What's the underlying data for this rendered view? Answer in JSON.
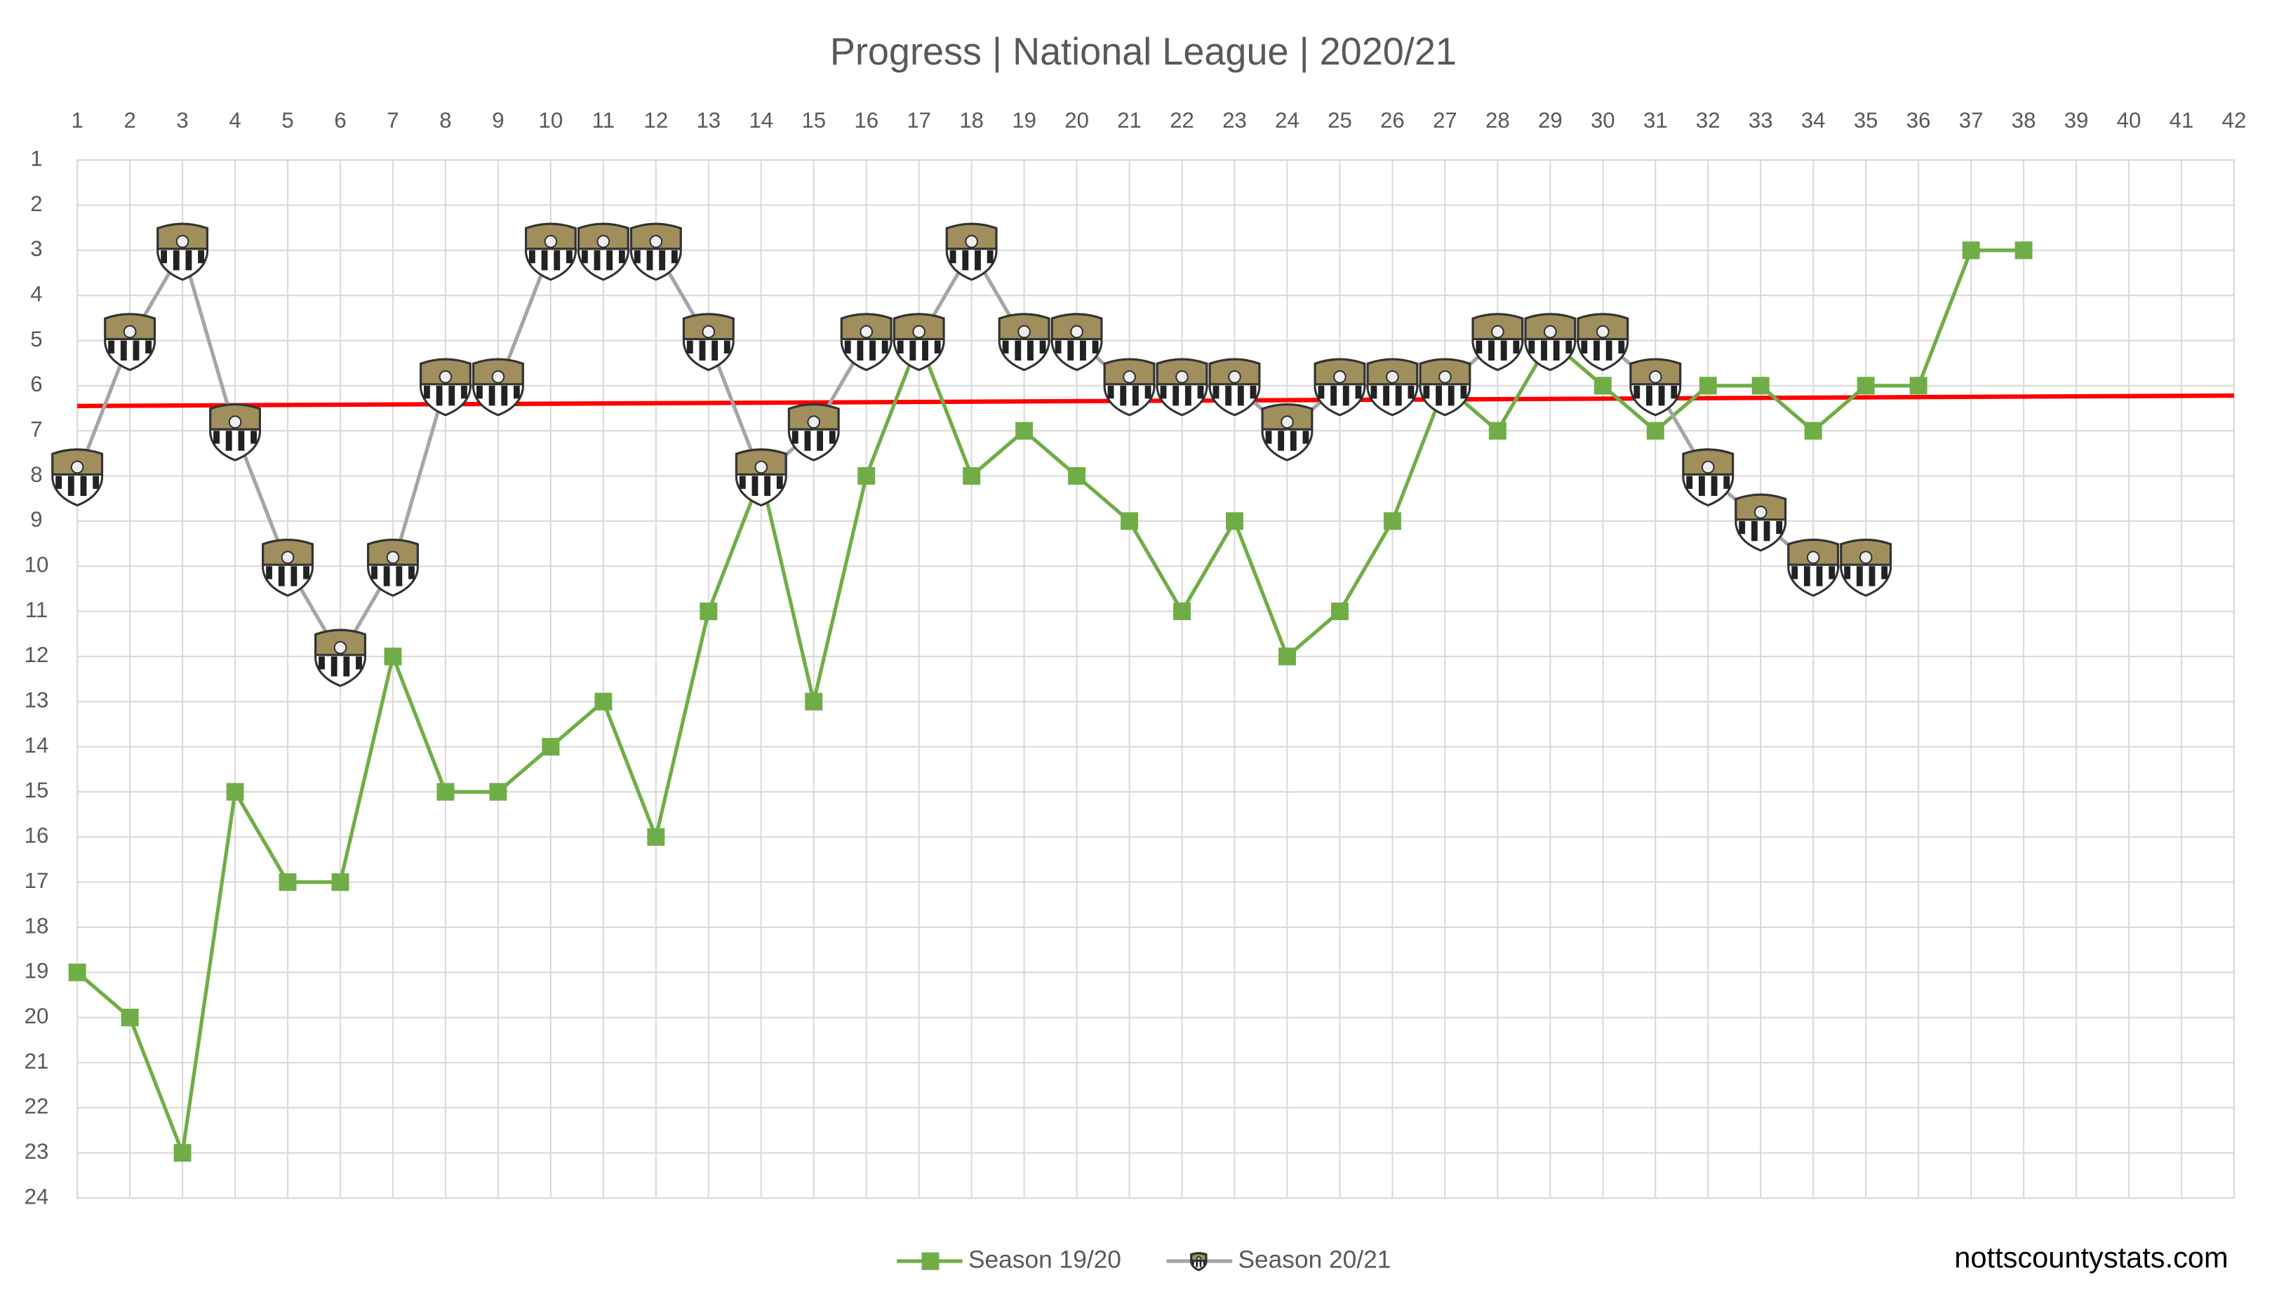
{
  "chart_data": {
    "type": "line",
    "title": "Progress | National League | 2020/21",
    "x": [
      1,
      2,
      3,
      4,
      5,
      6,
      7,
      8,
      9,
      10,
      11,
      12,
      13,
      14,
      15,
      16,
      17,
      18,
      19,
      20,
      21,
      22,
      23,
      24,
      25,
      26,
      27,
      28,
      29,
      30,
      31,
      32,
      33,
      34,
      35,
      36,
      37,
      38
    ],
    "series": [
      {
        "name": "Season 19/20",
        "color": "#70ad47",
        "marker": "square",
        "values": [
          19,
          20,
          23,
          15,
          17,
          17,
          12,
          15,
          15,
          14,
          13,
          16,
          11,
          8,
          13,
          8,
          5,
          8,
          7,
          8,
          9,
          11,
          9,
          12,
          11,
          9,
          6,
          7,
          5,
          6,
          7,
          6,
          6,
          7,
          6,
          6,
          3,
          3
        ]
      },
      {
        "name": "Season 20/21",
        "color": "#a5a5a5",
        "marker": "badge",
        "values": [
          8,
          5,
          3,
          7,
          10,
          12,
          10,
          6,
          6,
          3,
          3,
          3,
          5,
          8,
          7,
          5,
          5,
          3,
          5,
          5,
          6,
          6,
          6,
          7,
          6,
          6,
          6,
          5,
          5,
          5,
          6,
          8,
          9,
          10,
          10,
          null,
          null,
          null
        ]
      }
    ],
    "trendline": {
      "color": "#ff0000",
      "x": [
        1,
        42
      ],
      "values": [
        6.45,
        6.22
      ]
    },
    "xlim": [
      1,
      42
    ],
    "xticks": [
      1,
      2,
      3,
      4,
      5,
      6,
      7,
      8,
      9,
      10,
      11,
      12,
      13,
      14,
      15,
      16,
      17,
      18,
      19,
      20,
      21,
      22,
      23,
      24,
      25,
      26,
      27,
      28,
      29,
      30,
      31,
      32,
      33,
      34,
      35,
      36,
      37,
      38,
      39,
      40,
      41,
      42
    ],
    "ylim": [
      1,
      24
    ],
    "y_reversed": true,
    "yticks": [
      1,
      2,
      3,
      4,
      5,
      6,
      7,
      8,
      9,
      10,
      11,
      12,
      13,
      14,
      15,
      16,
      17,
      18,
      19,
      20,
      21,
      22,
      23,
      24
    ],
    "grid": true,
    "legend": "bottom",
    "watermark": "nottscountystats.com"
  }
}
